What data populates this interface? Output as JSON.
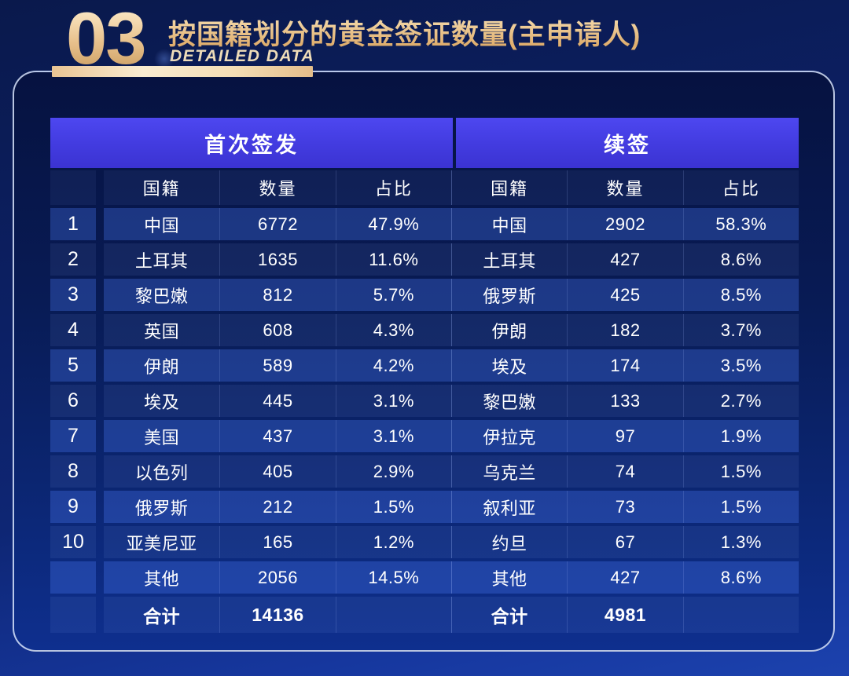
{
  "header": {
    "section_number": "03",
    "title": "按国籍划分的黄金签证数量(主申请人)",
    "subtitle": "DETAILED DATA"
  },
  "colors": {
    "accent_gold": "#e8c48f",
    "group_header_blue": "#4540e6",
    "row_light": "#15307c",
    "row_dark": "#0c1f60",
    "panel_border": "#d8e4fc",
    "background_navy": "#0c2064",
    "text": "#ffffff"
  },
  "chart_data": {
    "type": "table",
    "title": "按国籍划分的黄金签证数量(主申请人)",
    "ranks": [
      "1",
      "2",
      "3",
      "4",
      "5",
      "6",
      "7",
      "8",
      "9",
      "10",
      "",
      ""
    ],
    "sections": [
      {
        "name": "首次签发",
        "columns": [
          "国籍",
          "数量",
          "占比"
        ],
        "rows": [
          [
            "中国",
            "6772",
            "47.9%"
          ],
          [
            "土耳其",
            "1635",
            "11.6%"
          ],
          [
            "黎巴嫩",
            "812",
            "5.7%"
          ],
          [
            "英国",
            "608",
            "4.3%"
          ],
          [
            "伊朗",
            "589",
            "4.2%"
          ],
          [
            "埃及",
            "445",
            "3.1%"
          ],
          [
            "美国",
            "437",
            "3.1%"
          ],
          [
            "以色列",
            "405",
            "2.9%"
          ],
          [
            "俄罗斯",
            "212",
            "1.5%"
          ],
          [
            "亚美尼亚",
            "165",
            "1.2%"
          ],
          [
            "其他",
            "2056",
            "14.5%"
          ],
          [
            "合计",
            "14136",
            ""
          ]
        ]
      },
      {
        "name": "续签",
        "columns": [
          "国籍",
          "数量",
          "占比"
        ],
        "rows": [
          [
            "中国",
            "2902",
            "58.3%"
          ],
          [
            "土耳其",
            "427",
            "8.6%"
          ],
          [
            "俄罗斯",
            "425",
            "8.5%"
          ],
          [
            "伊朗",
            "182",
            "3.7%"
          ],
          [
            "埃及",
            "174",
            "3.5%"
          ],
          [
            "黎巴嫩",
            "133",
            "2.7%"
          ],
          [
            "伊拉克",
            "97",
            "1.9%"
          ],
          [
            "乌克兰",
            "74",
            "1.5%"
          ],
          [
            "叙利亚",
            "73",
            "1.5%"
          ],
          [
            "约旦",
            "67",
            "1.3%"
          ],
          [
            "其他",
            "427",
            "8.6%"
          ],
          [
            "合计",
            "4981",
            ""
          ]
        ]
      }
    ]
  }
}
